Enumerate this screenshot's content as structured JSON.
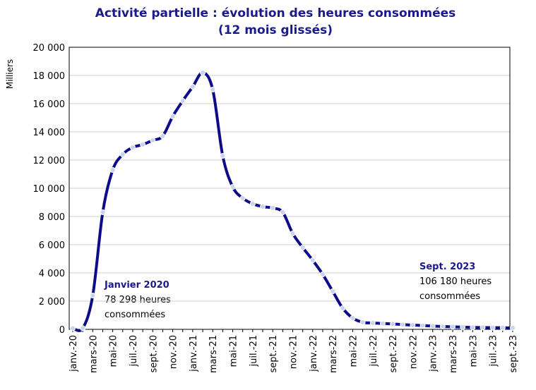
{
  "chart_data": {
    "type": "line",
    "title": [
      "Activité partielle : évolution des heures consommées",
      "(12 mois glissés)"
    ],
    "ylabel": "Milliers",
    "categories": [
      "janv.-20",
      null,
      "mars-20",
      null,
      "mai-20",
      null,
      "juil.-20",
      null,
      "sept.-20",
      null,
      "nov.-20",
      null,
      "janv.-21",
      null,
      "mars-21",
      null,
      "mai-21",
      null,
      "juil.-21",
      null,
      "sept.-21",
      null,
      "nov.-21",
      null,
      "janv.-22",
      null,
      "mars-22",
      null,
      "mai-22",
      null,
      "juil.-22",
      null,
      "sept.-22",
      null,
      "nov.-22",
      null,
      "janv.-23",
      null,
      "mars-23",
      null,
      "mai-23",
      null,
      "juil.-23",
      null,
      "sept.-23"
    ],
    "series": [
      {
        "name": "Heures consommées",
        "color": "#0c0c8a",
        "values": [
          78.298,
          80,
          2400,
          8300,
          11300,
          12400,
          12900,
          13100,
          13400,
          13700,
          15100,
          16200,
          17200,
          18200,
          17000,
          12300,
          10100,
          9300,
          8900,
          8700,
          8600,
          8300,
          6800,
          5800,
          4900,
          3900,
          2700,
          1500,
          800,
          500,
          450,
          420,
          380,
          340,
          300,
          270,
          230,
          200,
          180,
          160,
          140,
          130,
          120,
          110,
          106.18
        ]
      }
    ],
    "ylim": [
      0,
      20000
    ],
    "yticks": [
      0,
      {
        "value": 2000,
        "label": "2 000"
      },
      {
        "value": 4000,
        "label": "4 000"
      },
      {
        "value": 6000,
        "label": "6 000"
      },
      {
        "value": 8000,
        "label": "8 000"
      },
      {
        "value": 10000,
        "label": "10 000"
      },
      {
        "value": 12000,
        "label": "12 000"
      },
      {
        "value": 14000,
        "label": "14 000"
      },
      {
        "value": 16000,
        "label": "16 000"
      },
      {
        "value": 18000,
        "label": "18 000"
      },
      {
        "value": 20000,
        "label": "20 000"
      }
    ],
    "grid": true,
    "annotations": [
      {
        "title": "Janvier 2020",
        "lines": [
          "78 298 heures",
          "consommées"
        ]
      },
      {
        "title": "Sept. 2023",
        "lines": [
          "106 180 heures",
          "consommées"
        ]
      }
    ]
  }
}
